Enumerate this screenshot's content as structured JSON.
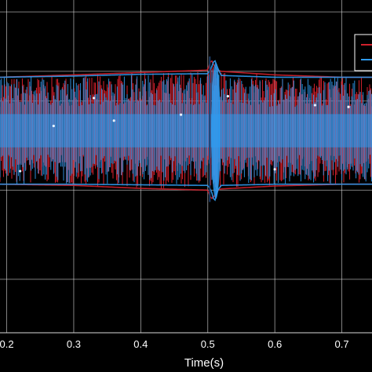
{
  "chart_data": {
    "type": "line",
    "xlabel": "Time(s)",
    "ylabel": "",
    "xlim": [
      0.19,
      0.745
    ],
    "ylim": [
      -3.4,
      2.2
    ],
    "x_ticks": [
      0.2,
      0.3,
      0.4,
      0.5,
      0.6,
      0.7
    ],
    "x_tick_labels": [
      "0.2",
      "0.3",
      "0.4",
      "0.5",
      "0.6",
      "0.7"
    ],
    "y_gridlines": [
      -2.5,
      -1.0,
      0.5,
      1.0,
      2.0
    ],
    "grid": true,
    "legend": "top-right",
    "series": [
      {
        "color": "#d0202c",
        "x": [
          0.19,
          0.3,
          0.4,
          0.5,
          0.505,
          0.51,
          0.515,
          0.52,
          0.6,
          0.7,
          0.745
        ],
        "y_upper": [
          0.9,
          0.94,
          0.98,
          1.02,
          1.2,
          1.08,
          1.02,
          1.0,
          0.94,
          0.9,
          0.9
        ],
        "y_lower": [
          -0.9,
          -0.92,
          -0.97,
          -1.0,
          -1.15,
          -1.1,
          -1.0,
          -0.98,
          -0.93,
          -0.9,
          -0.9
        ]
      },
      {
        "color": "#2f9bf0",
        "x": [
          0.19,
          0.3,
          0.4,
          0.5,
          0.505,
          0.51,
          0.515,
          0.52,
          0.6,
          0.7,
          0.745
        ],
        "y_upper": [
          0.9,
          0.92,
          0.95,
          0.96,
          1.05,
          1.2,
          1.05,
          0.93,
          0.9,
          0.9,
          0.9
        ],
        "y_lower": [
          -0.9,
          -0.9,
          -0.91,
          -0.92,
          -1.0,
          -1.2,
          -1.0,
          -0.92,
          -0.9,
          -0.9,
          -0.9
        ]
      }
    ],
    "colors": {
      "background": "#000000",
      "grid": "#d9d9d9",
      "text": "#ffffff"
    }
  }
}
